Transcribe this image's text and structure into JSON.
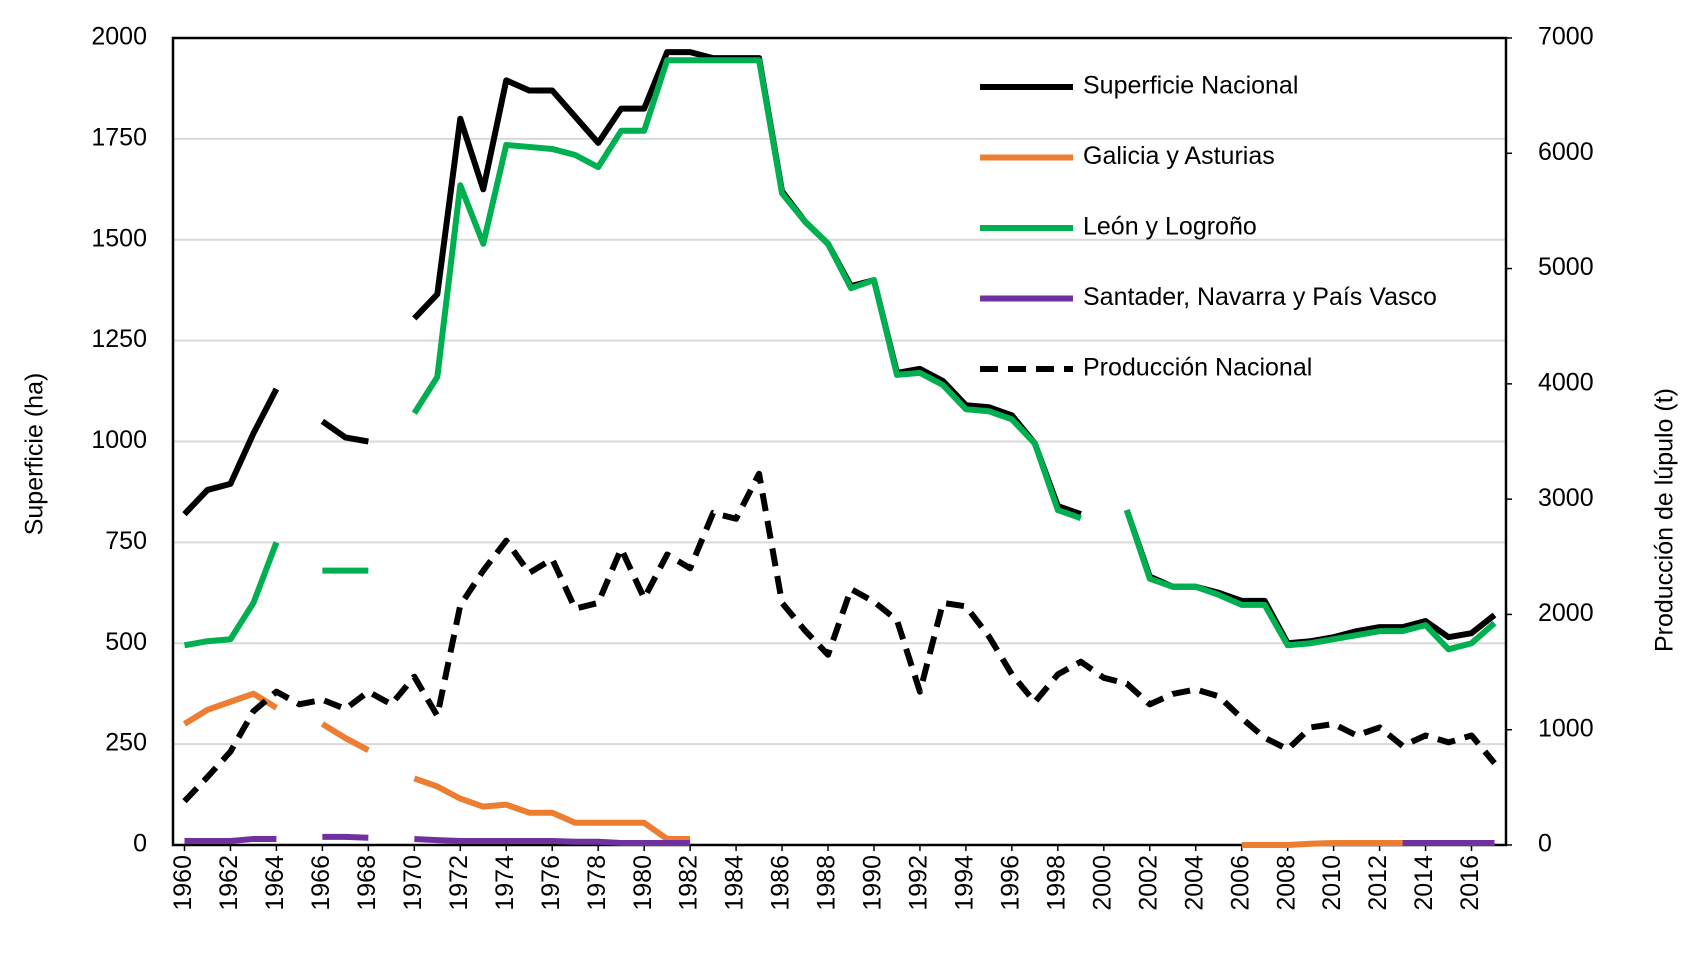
{
  "chart_data": {
    "type": "line",
    "y_label": "Superficie (ha)",
    "y2_label": "Producción de lúpulo (t)",
    "x": [
      1960,
      1961,
      1962,
      1963,
      1964,
      1965,
      1966,
      1967,
      1968,
      1969,
      1970,
      1971,
      1972,
      1973,
      1974,
      1975,
      1976,
      1977,
      1978,
      1979,
      1980,
      1981,
      1982,
      1983,
      1984,
      1985,
      1986,
      1987,
      1988,
      1989,
      1990,
      1991,
      1992,
      1993,
      1994,
      1995,
      1996,
      1997,
      1998,
      1999,
      2000,
      2001,
      2002,
      2003,
      2004,
      2005,
      2006,
      2007,
      2008,
      2009,
      2010,
      2011,
      2012,
      2013,
      2014,
      2015,
      2016,
      2017
    ],
    "xlim": [
      1959.5,
      2017.5
    ],
    "xticks": [
      1960,
      1962,
      1964,
      1966,
      1968,
      1970,
      1972,
      1974,
      1976,
      1978,
      1980,
      1982,
      1984,
      1986,
      1988,
      1990,
      1992,
      1994,
      1996,
      1998,
      2000,
      2002,
      2004,
      2006,
      2008,
      2010,
      2012,
      2014,
      2016
    ],
    "ylim": [
      0,
      2000
    ],
    "yticks": [
      0,
      250,
      500,
      750,
      1000,
      1250,
      1500,
      1750,
      2000
    ],
    "y2lim": [
      0,
      7000
    ],
    "y2ticks": [
      0,
      1000,
      2000,
      3000,
      4000,
      5000,
      6000,
      7000
    ],
    "grid": true,
    "legend": "upper right",
    "series": [
      {
        "name": "Superficie Nacional",
        "color": "#000000",
        "linestyle": "solid",
        "values": [
          820,
          880,
          895,
          1020,
          1130,
          null,
          1050,
          1010,
          1000,
          null,
          1305,
          1365,
          1800,
          1625,
          1895,
          1870,
          1870,
          1805,
          1740,
          1825,
          1825,
          1965,
          1965,
          1950,
          1950,
          1950,
          1620,
          1545,
          1490,
          1385,
          1400,
          1170,
          1180,
          1150,
          1090,
          1085,
          1065,
          995,
          840,
          820,
          null,
          830,
          665,
          640,
          640,
          625,
          605,
          605,
          500,
          505,
          515,
          530,
          540,
          540,
          555,
          515,
          525,
          570
        ]
      },
      {
        "name": "Galicia y Asturias",
        "color": "#ed7d31",
        "linestyle": "solid",
        "values": [
          300,
          335,
          355,
          375,
          340,
          null,
          300,
          265,
          235,
          null,
          165,
          145,
          115,
          95,
          100,
          80,
          80,
          55,
          55,
          55,
          55,
          15,
          15,
          null,
          null,
          null,
          null,
          null,
          null,
          null,
          null,
          null,
          null,
          null,
          null,
          null,
          null,
          null,
          null,
          null,
          null,
          null,
          null,
          null,
          null,
          null,
          0,
          0,
          0,
          3,
          5,
          5,
          5,
          5,
          null,
          null,
          null,
          null
        ]
      },
      {
        "name": "León y Logroño",
        "color": "#00b050",
        "linestyle": "solid",
        "values": [
          495,
          505,
          510,
          600,
          750,
          null,
          680,
          680,
          680,
          null,
          1070,
          1160,
          1635,
          1490,
          1735,
          1730,
          1725,
          1710,
          1680,
          1770,
          1770,
          1945,
          1945,
          1945,
          1945,
          1945,
          1615,
          1545,
          1490,
          1380,
          1400,
          1165,
          1170,
          1140,
          1080,
          1075,
          1055,
          995,
          830,
          810,
          null,
          830,
          660,
          640,
          640,
          620,
          595,
          595,
          495,
          500,
          510,
          520,
          530,
          530,
          545,
          485,
          500,
          550
        ]
      },
      {
        "name": "Santader, Navarra y País Vasco",
        "color": "#7030a0",
        "linestyle": "solid",
        "values": [
          10,
          10,
          10,
          15,
          15,
          null,
          20,
          20,
          18,
          null,
          15,
          12,
          10,
          10,
          10,
          10,
          10,
          8,
          8,
          5,
          5,
          5,
          5,
          null,
          null,
          null,
          null,
          null,
          null,
          null,
          null,
          null,
          null,
          null,
          null,
          null,
          null,
          null,
          null,
          null,
          null,
          null,
          null,
          null,
          null,
          null,
          null,
          null,
          null,
          null,
          null,
          null,
          null,
          5,
          5,
          5,
          5,
          5
        ]
      },
      {
        "name": "Producción Nacional",
        "color": "#000000",
        "linestyle": "dashed",
        "axis": "y2",
        "values": [
          380,
          590,
          810,
          1160,
          1330,
          1220,
          1260,
          1180,
          1330,
          1220,
          1460,
          1120,
          2080,
          2380,
          2640,
          2360,
          2480,
          2050,
          2100,
          2570,
          2140,
          2520,
          2400,
          2880,
          2830,
          3220,
          2100,
          1860,
          1650,
          2220,
          2110,
          1950,
          1330,
          2100,
          2070,
          1810,
          1480,
          1240,
          1480,
          1590,
          1450,
          1400,
          1220,
          1310,
          1350,
          1290,
          1100,
          930,
          830,
          1020,
          1050,
          950,
          1020,
          860,
          950,
          890,
          950,
          710
        ]
      }
    ]
  }
}
